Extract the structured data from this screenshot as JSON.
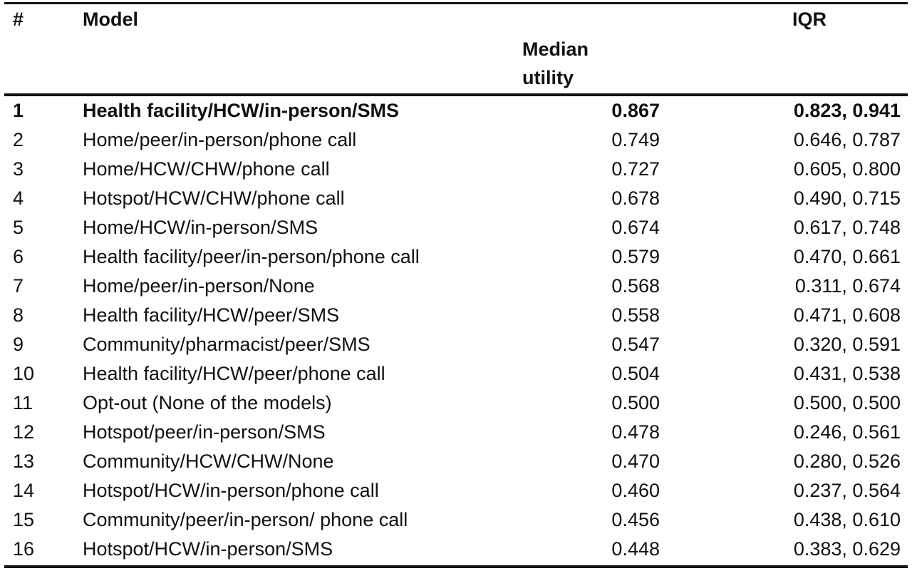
{
  "table": {
    "headers": {
      "num": "#",
      "model": "Model",
      "median_line1": "Median",
      "median_line2": "utility",
      "iqr": "IQR"
    },
    "rows": [
      {
        "num": "1",
        "model": "Health facility/HCW/in-person/SMS",
        "median": "0.867",
        "iqr": "0.823, 0.941",
        "bold": true
      },
      {
        "num": "2",
        "model": "Home/peer/in-person/phone call",
        "median": "0.749",
        "iqr": "0.646, 0.787"
      },
      {
        "num": "3",
        "model": "Home/HCW/CHW/phone call",
        "median": "0.727",
        "iqr": "0.605, 0.800"
      },
      {
        "num": "4",
        "model": "Hotspot/HCW/CHW/phone call",
        "median": "0.678",
        "iqr": "0.490, 0.715"
      },
      {
        "num": "5",
        "model": "Home/HCW/in-person/SMS",
        "median": "0.674",
        "iqr": "0.617, 0.748"
      },
      {
        "num": "6",
        "model": "Health facility/peer/in-person/phone call",
        "median": "0.579",
        "iqr": "0.470, 0.661"
      },
      {
        "num": "7",
        "model": "Home/peer/in-person/None",
        "median": "0.568",
        "iqr": "0.311, 0.674"
      },
      {
        "num": "8",
        "model": "Health facility/HCW/peer/SMS",
        "median": "0.558",
        "iqr": "0.471, 0.608"
      },
      {
        "num": "9",
        "model": "Community/pharmacist/peer/SMS",
        "median": "0.547",
        "iqr": "0.320, 0.591"
      },
      {
        "num": "10",
        "model": "Health facility/HCW/peer/phone call",
        "median": "0.504",
        "iqr": "0.431, 0.538"
      },
      {
        "num": "11",
        "model": "Opt-out (None of the models)",
        "median": "0.500",
        "iqr": "0.500, 0.500"
      },
      {
        "num": "12",
        "model": "Hotspot/peer/in-person/SMS",
        "median": "0.478",
        "iqr": "0.246, 0.561"
      },
      {
        "num": "13",
        "model": "Community/HCW/CHW/None",
        "median": "0.470",
        "iqr": "0.280, 0.526"
      },
      {
        "num": "14",
        "model": "Hotspot/HCW/in-person/phone call",
        "median": "0.460",
        "iqr": "0.237, 0.564"
      },
      {
        "num": "15",
        "model": "Community/peer/in-person/ phone call",
        "median": "0.456",
        "iqr": "0.438, 0.610"
      },
      {
        "num": "16",
        "model": "Hotspot/HCW/in-person/SMS",
        "median": "0.448",
        "iqr": "0.383, 0.629"
      }
    ]
  }
}
